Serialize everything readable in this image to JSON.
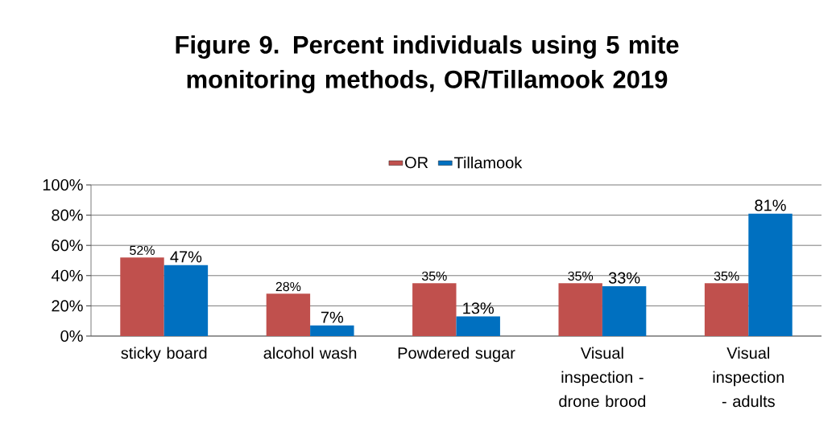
{
  "chart_data": {
    "type": "bar",
    "title": "Figure 9. Percent individuals  using 5 mite monitoring methods, OR/Tillamook  2019",
    "categories": [
      "sticky board",
      "alcohol wash",
      "Powdered sugar",
      "Visual inspection - drone brood",
      "Visual inspection - adults"
    ],
    "series": [
      {
        "name": "OR",
        "color": "#c0504d",
        "values": [
          52,
          28,
          35,
          35,
          35
        ],
        "value_labels": [
          "52%",
          "28%",
          "35%",
          "35%",
          "35%"
        ]
      },
      {
        "name": "Tillamook",
        "color": "#0070c0",
        "values": [
          47,
          7,
          13,
          33,
          81
        ],
        "value_labels": [
          "47%",
          "7%",
          "13%",
          "33%",
          "81%"
        ]
      }
    ],
    "ylim": [
      0,
      100
    ],
    "yticks": [
      {
        "value": 0,
        "label": "0%"
      },
      {
        "value": 20,
        "label": "20%"
      },
      {
        "value": 40,
        "label": "40%"
      },
      {
        "value": 60,
        "label": "60%"
      },
      {
        "value": 80,
        "label": "80%"
      },
      {
        "value": 100,
        "label": "100%"
      }
    ],
    "grid": "y",
    "legend": "top"
  }
}
